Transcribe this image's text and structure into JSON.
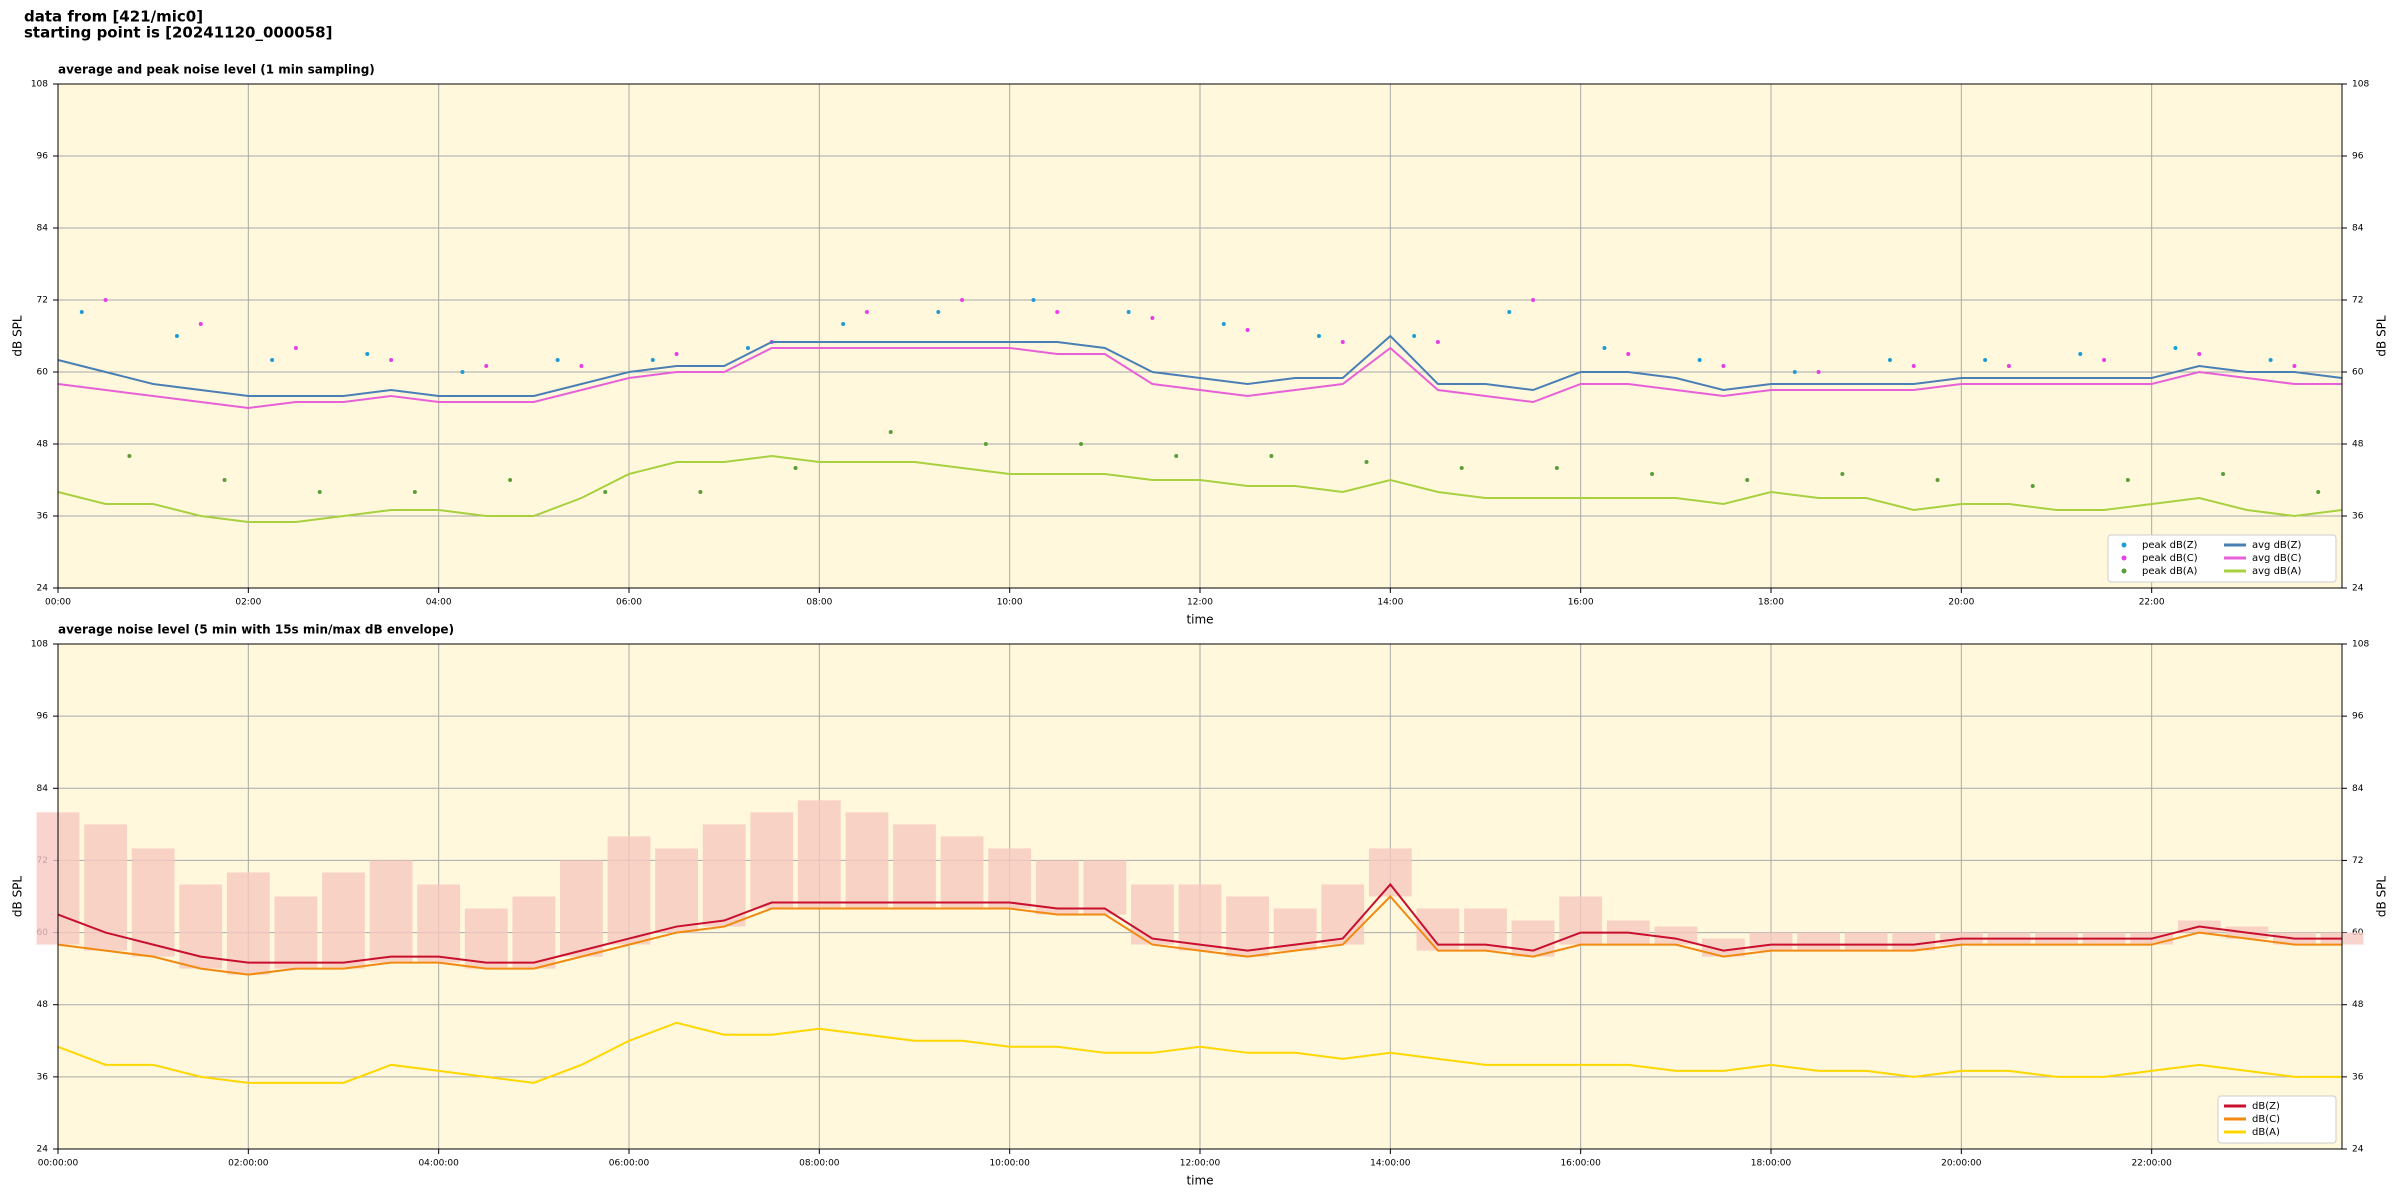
{
  "header": {
    "line1": "data from [421/mic0]",
    "line2": "starting point is [20241120_000058]"
  },
  "chart_data": [
    {
      "type": "line",
      "title": "average and peak noise level (1 min sampling)",
      "xlabel": "time",
      "ylabel": "dB SPL",
      "y2label": "dB SPL",
      "xlim": [
        0,
        24
      ],
      "ylim": [
        24,
        108
      ],
      "y2lim": [
        24,
        108
      ],
      "xticks": [
        {
          "value": 0,
          "label": "00:00"
        },
        {
          "value": 2,
          "label": "02:00"
        },
        {
          "value": 4,
          "label": "04:00"
        },
        {
          "value": 6,
          "label": "06:00"
        },
        {
          "value": 8,
          "label": "08:00"
        },
        {
          "value": 10,
          "label": "10:00"
        },
        {
          "value": 12,
          "label": "12:00"
        },
        {
          "value": 14,
          "label": "14:00"
        },
        {
          "value": 16,
          "label": "16:00"
        },
        {
          "value": 18,
          "label": "18:00"
        },
        {
          "value": 20,
          "label": "20:00"
        },
        {
          "value": 22,
          "label": "22:00"
        }
      ],
      "yticks": [
        24,
        36,
        48,
        60,
        72,
        84,
        96,
        108
      ],
      "y2ticks": [
        24,
        36,
        48,
        60,
        72,
        84,
        96,
        108
      ],
      "grid": true,
      "background": "#fff8dc",
      "legend": "lower right",
      "legend_columns": 2,
      "x": [
        0,
        0.5,
        1,
        1.5,
        2,
        2.5,
        3,
        3.5,
        4,
        4.5,
        5,
        5.5,
        6,
        6.5,
        7,
        7.5,
        8,
        8.5,
        9,
        9.5,
        10,
        10.5,
        11,
        11.5,
        12,
        12.5,
        13,
        13.5,
        14,
        14.5,
        15,
        15.5,
        16,
        16.5,
        17,
        17.5,
        18,
        18.5,
        19,
        19.5,
        20,
        20.5,
        21,
        21.5,
        22,
        22.5,
        23,
        23.5,
        24
      ],
      "series": [
        {
          "name": "peak dB(Z)",
          "style": "scatter",
          "color": "#1f9bd6",
          "x": [
            0.25,
            1.25,
            2.25,
            3.25,
            4.25,
            5.25,
            6.25,
            7.25,
            8.25,
            9.25,
            10.25,
            11.25,
            12.25,
            13.25,
            14.25,
            15.25,
            16.25,
            17.25,
            18.25,
            19.25,
            20.25,
            21.25,
            22.25,
            23.25
          ],
          "values": [
            70,
            66,
            62,
            63,
            60,
            62,
            62,
            64,
            68,
            70,
            72,
            70,
            68,
            66,
            66,
            70,
            64,
            62,
            60,
            62,
            62,
            63,
            64,
            62
          ]
        },
        {
          "name": "peak dB(C)",
          "style": "scatter",
          "color": "#e83ee8",
          "x": [
            0.5,
            1.5,
            2.5,
            3.5,
            4.5,
            5.5,
            6.5,
            7.5,
            8.5,
            9.5,
            10.5,
            11.5,
            12.5,
            13.5,
            14.5,
            15.5,
            16.5,
            17.5,
            18.5,
            19.5,
            20.5,
            21.5,
            22.5,
            23.5
          ],
          "values": [
            72,
            68,
            64,
            62,
            61,
            61,
            63,
            65,
            70,
            72,
            70,
            69,
            67,
            65,
            65,
            72,
            63,
            61,
            60,
            61,
            61,
            62,
            63,
            61
          ]
        },
        {
          "name": "peak dB(A)",
          "style": "scatter",
          "color": "#5a9e3a",
          "x": [
            0.75,
            1.75,
            2.75,
            3.75,
            4.75,
            5.75,
            6.75,
            7.75,
            8.75,
            9.75,
            10.75,
            11.75,
            12.75,
            13.75,
            14.75,
            15.75,
            16.75,
            17.75,
            18.75,
            19.75,
            20.75,
            21.75,
            22.75,
            23.75
          ],
          "values": [
            46,
            42,
            40,
            40,
            42,
            40,
            40,
            44,
            50,
            48,
            48,
            46,
            46,
            45,
            44,
            44,
            43,
            42,
            43,
            42,
            41,
            42,
            43,
            40
          ]
        },
        {
          "name": "avg dB(Z)",
          "style": "line",
          "color": "#4a7fb5",
          "values": [
            62,
            60,
            58,
            57,
            56,
            56,
            56,
            57,
            56,
            56,
            56,
            58,
            60,
            61,
            61,
            65,
            65,
            65,
            65,
            65,
            65,
            65,
            64,
            60,
            59,
            58,
            59,
            59,
            66,
            58,
            58,
            57,
            60,
            60,
            59,
            57,
            58,
            58,
            58,
            58,
            59,
            59,
            59,
            59,
            59,
            61,
            60,
            60,
            59
          ]
        },
        {
          "name": "avg dB(C)",
          "style": "line",
          "color": "#e860d8",
          "values": [
            58,
            57,
            56,
            55,
            54,
            55,
            55,
            56,
            55,
            55,
            55,
            57,
            59,
            60,
            60,
            64,
            64,
            64,
            64,
            64,
            64,
            63,
            63,
            58,
            57,
            56,
            57,
            58,
            64,
            57,
            56,
            55,
            58,
            58,
            57,
            56,
            57,
            57,
            57,
            57,
            58,
            58,
            58,
            58,
            58,
            60,
            59,
            58,
            58
          ]
        },
        {
          "name": "avg dB(A)",
          "style": "line",
          "color": "#a8d040",
          "values": [
            40,
            38,
            38,
            36,
            35,
            35,
            36,
            37,
            37,
            36,
            36,
            39,
            43,
            45,
            45,
            46,
            45,
            45,
            45,
            44,
            43,
            43,
            43,
            42,
            42,
            41,
            41,
            40,
            42,
            40,
            39,
            39,
            39,
            39,
            39,
            38,
            40,
            39,
            39,
            37,
            38,
            38,
            37,
            37,
            38,
            39,
            37,
            36,
            37
          ]
        }
      ]
    },
    {
      "type": "line",
      "title": "average noise level (5 min with 15s min/max dB envelope)",
      "xlabel": "time",
      "ylabel": "dB SPL",
      "y2label": "dB SPL",
      "xlim": [
        0,
        24
      ],
      "ylim": [
        24,
        108
      ],
      "y2lim": [
        24,
        108
      ],
      "xticks": [
        {
          "value": 0,
          "label": "00:00:00"
        },
        {
          "value": 2,
          "label": "02:00:00"
        },
        {
          "value": 4,
          "label": "04:00:00"
        },
        {
          "value": 6,
          "label": "06:00:00"
        },
        {
          "value": 8,
          "label": "08:00:00"
        },
        {
          "value": 10,
          "label": "10:00:00"
        },
        {
          "value": 12,
          "label": "12:00:00"
        },
        {
          "value": 14,
          "label": "14:00:00"
        },
        {
          "value": 16,
          "label": "16:00:00"
        },
        {
          "value": 18,
          "label": "18:00:00"
        },
        {
          "value": 20,
          "label": "20:00:00"
        },
        {
          "value": 22,
          "label": "22:00:00"
        }
      ],
      "yticks": [
        24,
        36,
        48,
        60,
        72,
        84,
        96,
        108
      ],
      "y2ticks": [
        24,
        36,
        48,
        60,
        72,
        84,
        96,
        108
      ],
      "grid": true,
      "background": "#fff8dc",
      "legend": "lower right",
      "legend_columns": 1,
      "x": [
        0,
        0.5,
        1,
        1.5,
        2,
        2.5,
        3,
        3.5,
        4,
        4.5,
        5,
        5.5,
        6,
        6.5,
        7,
        7.5,
        8,
        8.5,
        9,
        9.5,
        10,
        10.5,
        11,
        11.5,
        12,
        12.5,
        13,
        13.5,
        14,
        14.5,
        15,
        15.5,
        16,
        16.5,
        17,
        17.5,
        18,
        18.5,
        19,
        19.5,
        20,
        20.5,
        21,
        21.5,
        22,
        22.5,
        23,
        23.5,
        24
      ],
      "envelope": {
        "color": "#f8c8c0",
        "values": [
          80,
          78,
          74,
          68,
          70,
          66,
          70,
          72,
          68,
          64,
          66,
          72,
          76,
          74,
          78,
          80,
          82,
          80,
          78,
          76,
          74,
          72,
          72,
          68,
          68,
          66,
          64,
          68,
          74,
          64,
          64,
          62,
          66,
          62,
          61,
          59,
          60,
          60,
          60,
          60,
          60,
          60,
          60,
          60,
          60,
          62,
          61,
          60,
          60
        ]
      },
      "series": [
        {
          "name": "dB(Z)",
          "style": "line",
          "color": "#c8102e",
          "values": [
            63,
            60,
            58,
            56,
            55,
            55,
            55,
            56,
            56,
            55,
            55,
            57,
            59,
            61,
            62,
            65,
            65,
            65,
            65,
            65,
            65,
            64,
            64,
            59,
            58,
            57,
            58,
            59,
            68,
            58,
            58,
            57,
            60,
            60,
            59,
            57,
            58,
            58,
            58,
            58,
            59,
            59,
            59,
            59,
            59,
            61,
            60,
            59,
            59
          ]
        },
        {
          "name": "dB(C)",
          "style": "line",
          "color": "#f08a10",
          "values": [
            58,
            57,
            56,
            54,
            53,
            54,
            54,
            55,
            55,
            54,
            54,
            56,
            58,
            60,
            61,
            64,
            64,
            64,
            64,
            64,
            64,
            63,
            63,
            58,
            57,
            56,
            57,
            58,
            66,
            57,
            57,
            56,
            58,
            58,
            58,
            56,
            57,
            57,
            57,
            57,
            58,
            58,
            58,
            58,
            58,
            60,
            59,
            58,
            58
          ]
        },
        {
          "name": "dB(A)",
          "style": "line",
          "color": "#ffd700",
          "values": [
            41,
            38,
            38,
            36,
            35,
            35,
            35,
            38,
            37,
            36,
            35,
            38,
            42,
            45,
            43,
            43,
            44,
            43,
            42,
            42,
            41,
            41,
            40,
            40,
            41,
            40,
            40,
            39,
            40,
            39,
            38,
            38,
            38,
            38,
            37,
            37,
            38,
            37,
            37,
            36,
            37,
            37,
            36,
            36,
            37,
            38,
            37,
            36,
            36
          ]
        }
      ]
    }
  ]
}
